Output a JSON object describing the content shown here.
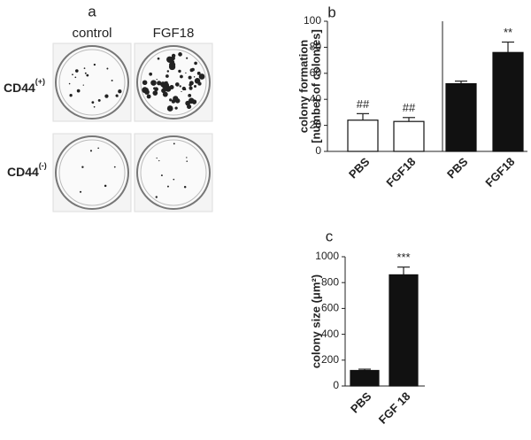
{
  "figure_a": {
    "panel_label": "a",
    "columns": [
      "control",
      "FGF18"
    ],
    "rows": [
      {
        "label": "CD44",
        "superscript": "(+)"
      },
      {
        "label": "CD44",
        "superscript": "(-)"
      }
    ]
  },
  "chart_data": [
    {
      "type": "bar",
      "panel_label": "b",
      "y_label": [
        "colony formation",
        "[number of colonies]"
      ],
      "categories": [
        "PBS",
        "FGF18",
        "PBS",
        "FGF18"
      ],
      "values": [
        24,
        23,
        52,
        76
      ],
      "errors": [
        5,
        3,
        2,
        8
      ],
      "colors": [
        "#ffffff",
        "#ffffff",
        "#111111",
        "#111111"
      ],
      "annotations": [
        "##",
        "##",
        null,
        "**"
      ],
      "ylim": [
        0,
        100
      ],
      "yticks": [
        0,
        20,
        40,
        60,
        80,
        100
      ]
    },
    {
      "type": "bar",
      "panel_label": "c",
      "y_label": [
        "colony size (μm²)"
      ],
      "categories": [
        "PBS",
        "FGF 18"
      ],
      "values": [
        120,
        860
      ],
      "errors": [
        10,
        60
      ],
      "colors": [
        "#111111",
        "#111111"
      ],
      "annotations": [
        null,
        "***"
      ],
      "ylim": [
        0,
        1000
      ],
      "yticks": [
        0,
        200,
        400,
        600,
        800,
        1000
      ]
    }
  ]
}
